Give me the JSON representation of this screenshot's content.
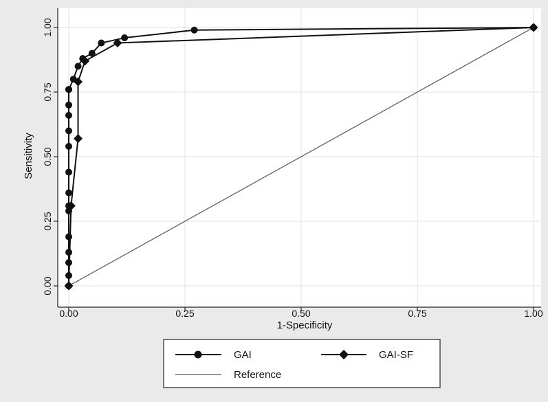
{
  "chart_data": {
    "type": "line",
    "title": "",
    "xlabel": "1-Specificity",
    "ylabel": "Sensitivity",
    "xlim": [
      0,
      1
    ],
    "ylim": [
      0,
      1
    ],
    "x_ticks": [
      "0.00",
      "0.25",
      "0.50",
      "0.75",
      "1.00"
    ],
    "y_ticks": [
      "0.00",
      "0.25",
      "0.50",
      "0.75",
      "1.00"
    ],
    "grid": true,
    "legend_position": "bottom",
    "series": [
      {
        "name": "GAI",
        "marker": "circle",
        "color": "#111111",
        "x": [
          0,
          0,
          0,
          0,
          0,
          0,
          0,
          0,
          0,
          0,
          0,
          0,
          0,
          0,
          0,
          0,
          0.01,
          0.02,
          0.03,
          0.05,
          0.07,
          0.12,
          0.27,
          1
        ],
        "y": [
          0,
          0.04,
          0.09,
          0.13,
          0.19,
          0.29,
          0.31,
          0.36,
          0.44,
          0.54,
          0.6,
          0.66,
          0.7,
          0.76,
          0.76,
          0.76,
          0.8,
          0.85,
          0.88,
          0.9,
          0.94,
          0.96,
          0.99,
          1
        ]
      },
      {
        "name": "GAI-SF",
        "marker": "diamond",
        "color": "#111111",
        "x": [
          0,
          0.005,
          0.02,
          0.02,
          0.035,
          0.105,
          1
        ],
        "y": [
          0,
          0.31,
          0.57,
          0.79,
          0.87,
          0.94,
          1
        ]
      },
      {
        "name": "Reference",
        "marker": "none",
        "color": "#555555",
        "x": [
          0,
          1
        ],
        "y": [
          0,
          1
        ]
      }
    ]
  }
}
